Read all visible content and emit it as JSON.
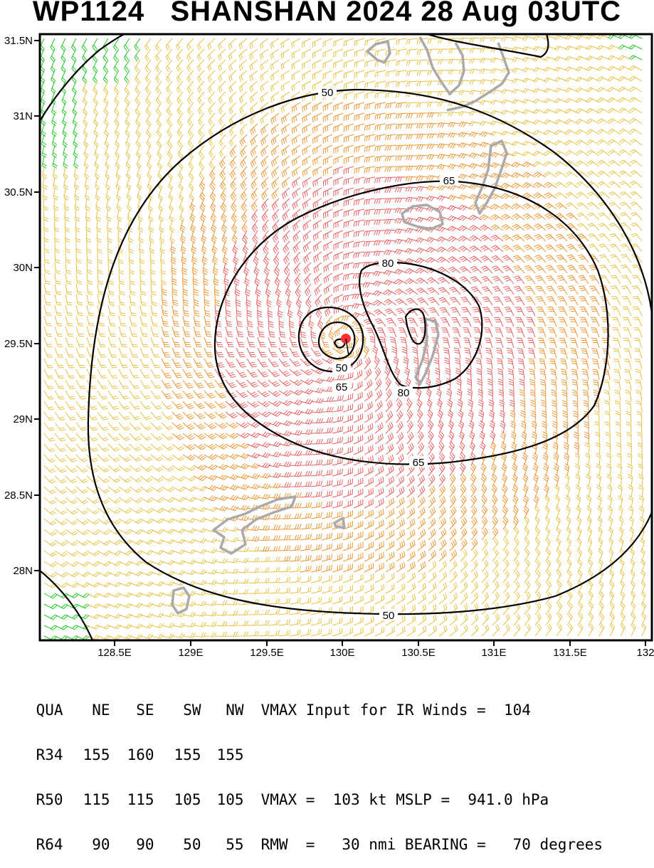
{
  "title": "WP1124   SHANSHAN 2024 28 Aug 03UTC",
  "map": {
    "lon_ticks": [
      "128.5E",
      "129E",
      "129.5E",
      "130E",
      "130.5E",
      "131E",
      "131.5E",
      "132"
    ],
    "lat_ticks": [
      "31.5N",
      "31N",
      "30.5N",
      "30N",
      "29.5N",
      "29N",
      "28.5N",
      "28N"
    ],
    "contour_labels": [
      "50",
      "65",
      "80",
      "80",
      "65",
      "65",
      "50",
      "50"
    ],
    "storm_center": {
      "lat": 29.5,
      "lon": 130.0
    },
    "colors": {
      "low": "#e8c040",
      "mid": "#ee9430",
      "high": "#e86060",
      "green": "#20c820",
      "land": "#aaaaaa",
      "center": "#ff3030"
    }
  },
  "table": {
    "header": {
      "c1": "QUA",
      "c2": "NE",
      "c3": "SE",
      "c4": "SW",
      "c5": "NW",
      "info": "VMAX Input for IR Winds =  104"
    },
    "rows": [
      {
        "c1": "R34",
        "c2": "155",
        "c3": "160",
        "c4": "155",
        "c5": "155",
        "info": ""
      },
      {
        "c1": "R50",
        "c2": "115",
        "c3": "115",
        "c4": "105",
        "c5": "105",
        "info": "VMAX =  103 kt MSLP =  941.0 hPa"
      },
      {
        "c1": "R64",
        "c2": "90",
        "c3": "90",
        "c4": "50",
        "c5": "55",
        "info": "RMW  =   30 nmi BEARING =   70 degrees"
      }
    ]
  }
}
